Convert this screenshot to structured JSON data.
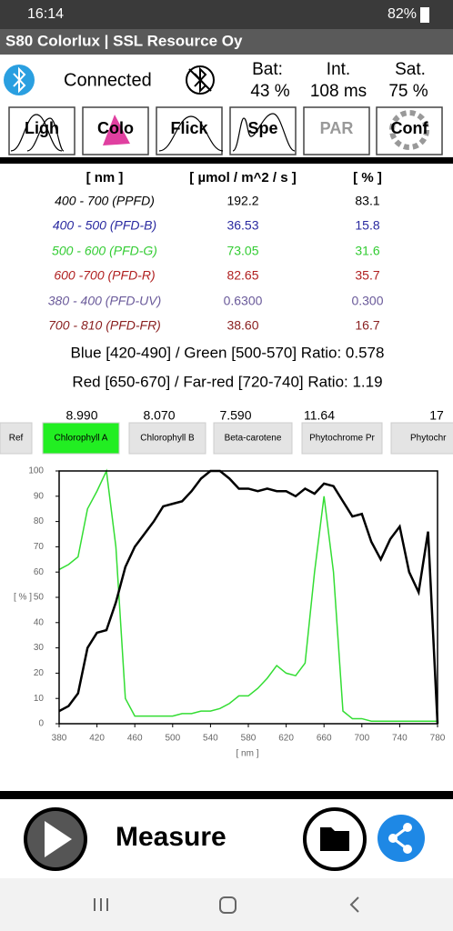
{
  "status_bar": {
    "time": "16:14",
    "battery": "82%"
  },
  "app_bar": {
    "title": "S80 Colorlux | SSL Resource Oy"
  },
  "status": {
    "connection": "Connected",
    "bat_label": "Bat:",
    "bat_value": "43 %",
    "int_label": "Int.",
    "int_value": "108 ms",
    "sat_label": "Sat.",
    "sat_value": "75 %"
  },
  "tabs": [
    "Ligh",
    "Colo",
    "Flick",
    "Spe",
    "PAR",
    "Conf"
  ],
  "table": {
    "header": [
      "[ nm ]",
      "[ µmol / m^2 / s ]",
      "[ % ]"
    ],
    "rows": [
      [
        "400 - 700 (PPFD)",
        "192.2",
        "83.1"
      ],
      [
        "400 - 500 (PFD-B)",
        "36.53",
        "15.8"
      ],
      [
        "500 - 600 (PFD-G)",
        "73.05",
        "31.6"
      ],
      [
        "600 -700 (PFD-R)",
        "82.65",
        "35.7"
      ],
      [
        "380 - 400 (PFD-UV)",
        "0.6300",
        "0.300"
      ],
      [
        "700 - 810 (PFD-FR)",
        "38.60",
        "16.7"
      ]
    ]
  },
  "ratios": [
    "Blue [420-490] / Green [500-570] Ratio: 0.578",
    "Red [650-670] / Far-red [720-740] Ratio: 1.19"
  ],
  "reference_values": [
    "8.990",
    "8.070",
    "7.590",
    "11.64",
    "17"
  ],
  "reference_buttons": [
    "Ref",
    "Chlorophyll A",
    "Chlorophyll B",
    "Beta-carotene",
    "Phytochrome Pr",
    "Phytochr"
  ],
  "chart_data": {
    "type": "line",
    "x_label": "[ nm ]",
    "y_label": "[ % ]",
    "x": [
      380,
      390,
      400,
      410,
      420,
      430,
      440,
      450,
      460,
      470,
      480,
      490,
      500,
      510,
      520,
      530,
      540,
      550,
      560,
      570,
      580,
      590,
      600,
      610,
      620,
      630,
      640,
      650,
      660,
      670,
      680,
      690,
      700,
      710,
      720,
      730,
      740,
      750,
      760,
      770,
      780
    ],
    "series": [
      {
        "color": "#000000",
        "values": [
          5,
          7,
          12,
          30,
          36,
          37,
          48,
          62,
          70,
          75,
          80,
          86,
          87,
          88,
          92,
          97,
          100,
          100,
          97,
          93,
          93,
          92,
          93,
          92,
          92,
          90,
          93,
          91,
          95,
          94,
          88,
          82,
          83,
          72,
          65,
          73,
          78,
          60,
          52,
          76,
          0
        ]
      },
      {
        "color": "#33dd33",
        "values": [
          61,
          63,
          66,
          85,
          92,
          100,
          70,
          10,
          3,
          3,
          3,
          3,
          3,
          4,
          4,
          5,
          5,
          6,
          8,
          11,
          11,
          14,
          18,
          23,
          20,
          19,
          24,
          60,
          90,
          60,
          5,
          2,
          2,
          1,
          1,
          1,
          1,
          1,
          1,
          1,
          1
        ]
      }
    ],
    "xlim": [
      380,
      780
    ],
    "xticks": [
      380,
      420,
      460,
      500,
      540,
      580,
      620,
      660,
      700,
      740,
      780
    ],
    "ylim": [
      0,
      100
    ],
    "yticks": [
      0,
      10,
      20,
      30,
      40,
      50,
      60,
      70,
      80,
      90,
      100
    ]
  },
  "bottom_bar": {
    "measure": "Measure"
  }
}
